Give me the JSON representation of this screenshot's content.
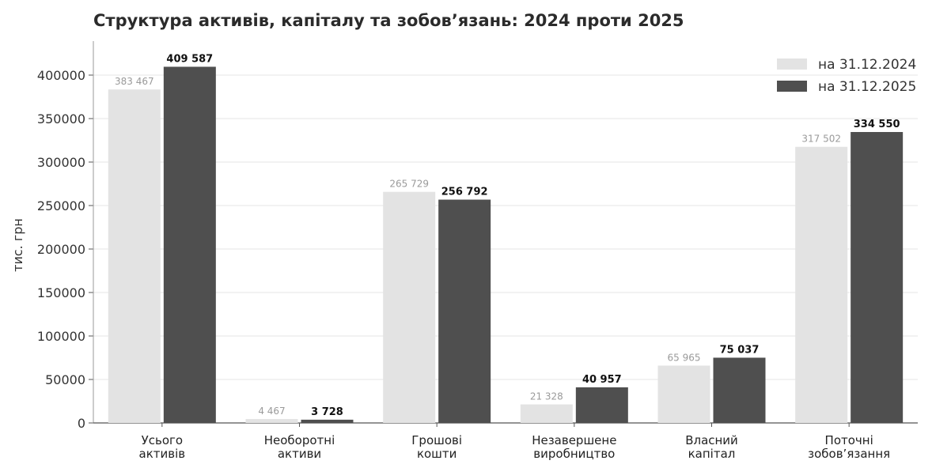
{
  "chart_data": {
    "type": "bar",
    "title": "Структура активів, капіталу та зобов’язань: 2024 проти 2025",
    "ylabel": "тис. грн",
    "xlabel": "",
    "ylim": [
      0,
      430000
    ],
    "yticks": [
      0,
      50000,
      100000,
      150000,
      200000,
      250000,
      300000,
      350000,
      400000
    ],
    "ytick_labels": [
      "0",
      "50000",
      "100000",
      "150000",
      "200000",
      "250000",
      "300000",
      "350000",
      "400000"
    ],
    "categories": [
      [
        "Усього",
        "активів"
      ],
      [
        "Необоротні",
        "активи"
      ],
      [
        "Грошові",
        "кошти"
      ],
      [
        "Незавершене",
        "виробництво"
      ],
      [
        "Власний",
        "капітал"
      ],
      [
        "Поточні",
        "зобов’язання"
      ]
    ],
    "series": [
      {
        "name": "на 31.12.2024",
        "color": "#e3e3e3",
        "values": [
          383467,
          4467,
          265729,
          21328,
          65965,
          317502
        ],
        "labels": [
          "383 467",
          "4 467",
          "265 729",
          "21 328",
          "65 965",
          "317 502"
        ]
      },
      {
        "name": "на 31.12.2025",
        "color": "#4f4f4f",
        "values": [
          409587,
          3728,
          256792,
          40957,
          75037,
          334550
        ],
        "labels": [
          "409 587",
          "3 728",
          "256 792",
          "40 957",
          "75 037",
          "334 550"
        ]
      }
    ],
    "legend_position": "top-right",
    "grid": true
  }
}
